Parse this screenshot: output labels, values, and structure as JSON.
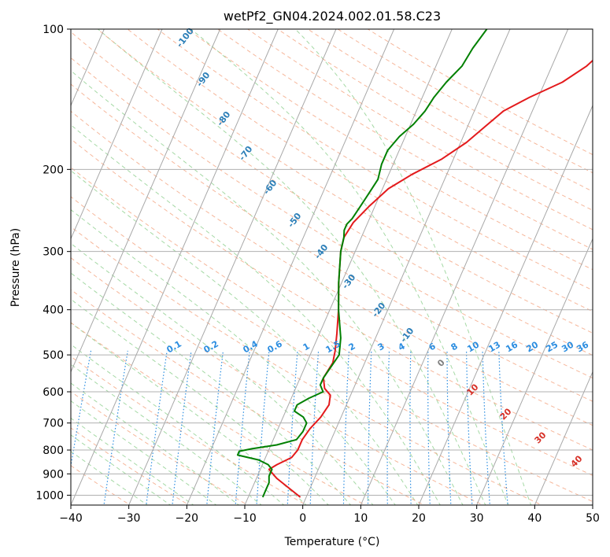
{
  "chart_data": {
    "type": "line",
    "subtype": "skew-t log-p diagram",
    "title": "wetPf2_GN04.2024.002.01.58.C23",
    "xlabel": "Temperature (°C)",
    "ylabel": "Pressure (hPa)",
    "xlim": [
      -40,
      50
    ],
    "ylim": [
      1050,
      100
    ],
    "y_scale": "log",
    "x_ticks": [
      -40,
      -30,
      -20,
      -10,
      0,
      10,
      20,
      30,
      40,
      50
    ],
    "x_tick_labels": [
      "−40",
      "−30",
      "−20",
      "−10",
      "0",
      "10",
      "20",
      "30",
      "40",
      "50"
    ],
    "y_ticks": [
      1000,
      900,
      800,
      700,
      600,
      500,
      400,
      300,
      200,
      100
    ],
    "y_tick_labels": [
      "1000",
      "900",
      "800",
      "700",
      "600",
      "500",
      "400",
      "300",
      "200",
      "100"
    ],
    "grid": true,
    "series": [
      {
        "role": "temperature",
        "color": "#e31a1c",
        "points": [
          [
            1010,
            -1
          ],
          [
            960,
            -4
          ],
          [
            920,
            -6.5
          ],
          [
            880,
            -8.5
          ],
          [
            860,
            -7.5
          ],
          [
            830,
            -5.5
          ],
          [
            800,
            -5
          ],
          [
            760,
            -5
          ],
          [
            720,
            -4.5
          ],
          [
            680,
            -3.5
          ],
          [
            640,
            -3
          ],
          [
            610,
            -3.5
          ],
          [
            590,
            -5
          ],
          [
            560,
            -6
          ],
          [
            520,
            -5.5
          ],
          [
            490,
            -6
          ],
          [
            450,
            -7
          ],
          [
            400,
            -8.5
          ],
          [
            350,
            -10.5
          ],
          [
            300,
            -12.5
          ],
          [
            280,
            -13
          ],
          [
            260,
            -12.5
          ],
          [
            240,
            -11
          ],
          [
            220,
            -9
          ],
          [
            205,
            -6
          ],
          [
            190,
            -2
          ],
          [
            175,
            1
          ],
          [
            162,
            3
          ],
          [
            150,
            5
          ],
          [
            140,
            8.5
          ],
          [
            130,
            13
          ],
          [
            120,
            16
          ],
          [
            110,
            18
          ],
          [
            100,
            20
          ]
        ]
      },
      {
        "role": "dewpoint",
        "color": "#008000",
        "points": [
          [
            1010,
            -7.5
          ],
          [
            980,
            -7.5
          ],
          [
            940,
            -7.5
          ],
          [
            910,
            -8
          ],
          [
            880,
            -8
          ],
          [
            860,
            -9
          ],
          [
            840,
            -11
          ],
          [
            820,
            -15
          ],
          [
            805,
            -15
          ],
          [
            795,
            -13
          ],
          [
            780,
            -9
          ],
          [
            760,
            -6
          ],
          [
            730,
            -5.5
          ],
          [
            700,
            -5.5
          ],
          [
            680,
            -6.5
          ],
          [
            660,
            -8.5
          ],
          [
            640,
            -8.5
          ],
          [
            620,
            -7
          ],
          [
            600,
            -5
          ],
          [
            580,
            -6
          ],
          [
            560,
            -6
          ],
          [
            530,
            -5.5
          ],
          [
            500,
            -5
          ],
          [
            460,
            -6
          ],
          [
            400,
            -8.5
          ],
          [
            350,
            -10.5
          ],
          [
            300,
            -12.5
          ],
          [
            280,
            -13
          ],
          [
            270,
            -13.5
          ],
          [
            262,
            -13.5
          ],
          [
            255,
            -13
          ],
          [
            240,
            -12.5
          ],
          [
            225,
            -12
          ],
          [
            210,
            -11.5
          ],
          [
            195,
            -12
          ],
          [
            182,
            -12
          ],
          [
            170,
            -11
          ],
          [
            160,
            -9.5
          ],
          [
            150,
            -8.5
          ],
          [
            140,
            -8
          ],
          [
            130,
            -7
          ],
          [
            120,
            -5.5
          ],
          [
            110,
            -5
          ],
          [
            100,
            -4
          ]
        ]
      }
    ],
    "dry_adiabat_labels": [
      "-100",
      "-90",
      "-80",
      "-70",
      "-60",
      "-50",
      "-40",
      "-30",
      "-20",
      "-10"
    ],
    "mixing_ratio_labels": [
      "0.1",
      "0.2",
      "0.4",
      "0.6",
      "1",
      "1.5",
      "2",
      "3",
      "4",
      "6",
      "8",
      "10",
      "13",
      "16",
      "20",
      "25",
      "30",
      "36"
    ],
    "moist_adiabat_labels": [
      "0",
      "10",
      "20",
      "30",
      "40"
    ],
    "colors": {
      "isobar": "#b0b0b0",
      "isotherm": "#a8a8a8",
      "dry_adiabat": "#f4a582",
      "moist_adiabat": "#8fcf8f",
      "mixing_ratio": "#2b8de0",
      "dry_adiabat_label": "#2c7fb8",
      "mixing_ratio_label": "#2b8de0",
      "moist_adiabat_label": "#d73027"
    }
  }
}
